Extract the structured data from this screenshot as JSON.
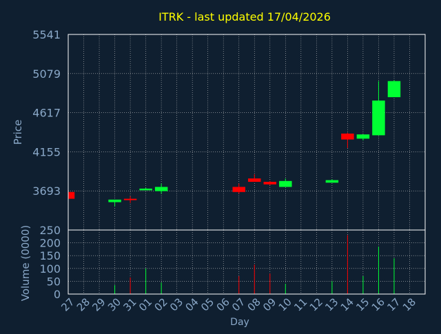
{
  "chart_data": [
    {
      "type": "candlestick",
      "title": "ITRK - last updated 17/04/2026",
      "ylabel": "Price",
      "xlabel": "Day",
      "x": [
        "27",
        "28",
        "29",
        "30",
        "31",
        "01",
        "02",
        "03",
        "04",
        "05",
        "06",
        "07",
        "08",
        "09",
        "10",
        "11",
        "12",
        "13",
        "14",
        "15",
        "16",
        "17",
        "18"
      ],
      "yticks": [
        3693,
        4155,
        4617,
        5079,
        5541
      ],
      "ylim": [
        3231,
        5541
      ],
      "grid": true,
      "candles": [
        {
          "x": "27",
          "open": 3680,
          "high": 3680,
          "low": 3600,
          "close": 3600
        },
        {
          "x": "30",
          "open": 3560,
          "high": 3590,
          "low": 3510,
          "close": 3590
        },
        {
          "x": "31",
          "open": 3600,
          "high": 3630,
          "low": 3550,
          "close": 3590
        },
        {
          "x": "01",
          "open": 3700,
          "high": 3730,
          "low": 3700,
          "close": 3720
        },
        {
          "x": "02",
          "open": 3690,
          "high": 3780,
          "low": 3660,
          "close": 3740
        },
        {
          "x": "07",
          "open": 3740,
          "high": 3780,
          "low": 3660,
          "close": 3680
        },
        {
          "x": "08",
          "open": 3840,
          "high": 3890,
          "low": 3800,
          "close": 3800
        },
        {
          "x": "09",
          "open": 3800,
          "high": 3810,
          "low": 3760,
          "close": 3770
        },
        {
          "x": "10",
          "open": 3740,
          "high": 3840,
          "low": 3740,
          "close": 3810
        },
        {
          "x": "13",
          "open": 3790,
          "high": 3830,
          "low": 3790,
          "close": 3820
        },
        {
          "x": "14",
          "open": 4370,
          "high": 4380,
          "low": 4200,
          "close": 4300
        },
        {
          "x": "15",
          "open": 4310,
          "high": 4360,
          "low": 4290,
          "close": 4360
        },
        {
          "x": "16",
          "open": 4350,
          "high": 4990,
          "low": 4350,
          "close": 4760
        },
        {
          "x": "17",
          "open": 4800,
          "high": 5000,
          "low": 4800,
          "close": 4990
        }
      ]
    },
    {
      "type": "bar",
      "ylabel": "Volume (0000)",
      "yticks": [
        0,
        50,
        100,
        150,
        200,
        250
      ],
      "ylim": [
        0,
        250
      ],
      "grid": true,
      "bars": [
        {
          "x": "30",
          "value": 35,
          "direction": "up"
        },
        {
          "x": "31",
          "value": 65,
          "direction": "down"
        },
        {
          "x": "01",
          "value": 100,
          "direction": "up"
        },
        {
          "x": "02",
          "value": 45,
          "direction": "up"
        },
        {
          "x": "07",
          "value": 70,
          "direction": "down"
        },
        {
          "x": "08",
          "value": 115,
          "direction": "down"
        },
        {
          "x": "09",
          "value": 80,
          "direction": "down"
        },
        {
          "x": "10",
          "value": 40,
          "direction": "up"
        },
        {
          "x": "13",
          "value": 50,
          "direction": "up"
        },
        {
          "x": "14",
          "value": 230,
          "direction": "down"
        },
        {
          "x": "15",
          "value": 70,
          "direction": "up"
        },
        {
          "x": "16",
          "value": 185,
          "direction": "up"
        },
        {
          "x": "17",
          "value": 140,
          "direction": "up"
        }
      ]
    }
  ],
  "colors": {
    "background": "#0f1f30",
    "title": "#ffff00",
    "axis_text": "#8aa8c8",
    "frame": "#ffffff",
    "grid": "#c8c8c8",
    "up": "#00ff33",
    "down": "#ff0000"
  }
}
